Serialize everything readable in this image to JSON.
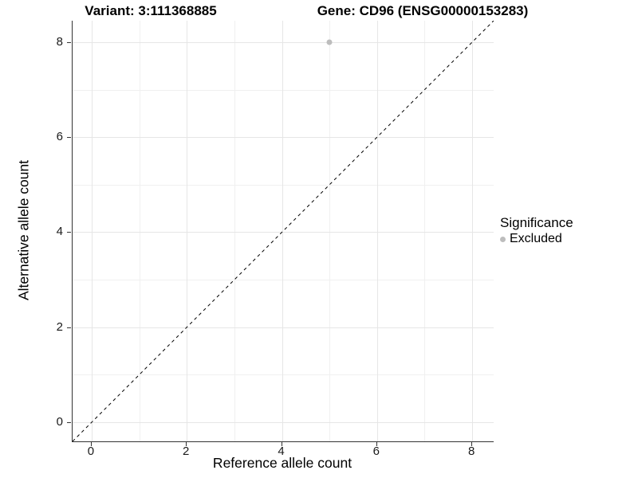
{
  "titles": {
    "variant": "Variant: 3:111368885",
    "gene": "Gene: CD96 (ENSG00000153283)"
  },
  "chart_data": {
    "type": "scatter",
    "xlabel": "Reference allele count",
    "ylabel": "Alternative allele count",
    "xlim": [
      -0.4,
      8.45
    ],
    "ylim": [
      -0.4,
      8.45
    ],
    "x_ticks": [
      0,
      2,
      4,
      6,
      8
    ],
    "y_ticks": [
      0,
      2,
      4,
      6,
      8
    ],
    "x_minor_ticks": [
      1,
      3,
      5,
      7
    ],
    "y_minor_ticks": [
      1,
      3,
      5,
      7
    ],
    "grid": true,
    "points": [
      {
        "x": 5,
        "y": 8,
        "series": "Excluded"
      }
    ],
    "identity_line": {
      "style": "dashed",
      "from": [
        -0.4,
        -0.4
      ],
      "to": [
        8.45,
        8.45
      ]
    },
    "legend": {
      "position": "right",
      "title": "Significance",
      "items": [
        {
          "label": "Excluded",
          "color": "#BDBDBD"
        }
      ]
    }
  },
  "colors": {
    "background": "#ffffff",
    "axis_line": "#333333",
    "grid_major": "#E6E6E6",
    "grid_minor": "#F0F0F0",
    "point_excluded": "#BDBDBD",
    "identity_line": "#000000",
    "text": "#000000"
  }
}
